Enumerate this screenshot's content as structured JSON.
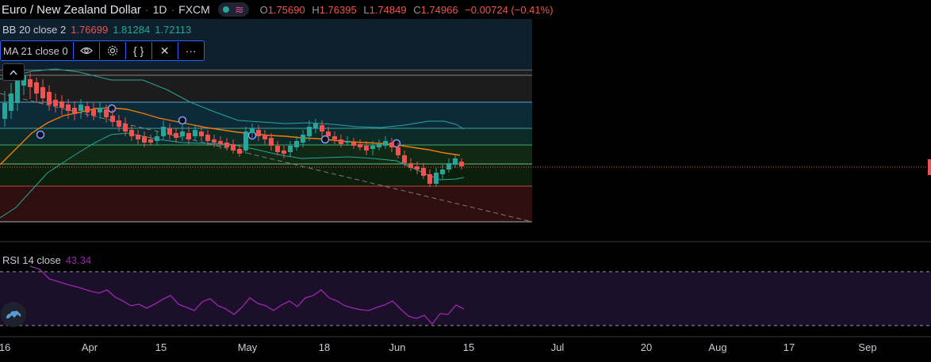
{
  "header": {
    "symbol": "Euro / New Zealand Dollar",
    "interval": "1D",
    "exchange": "FXCM",
    "ohlc": {
      "o": "1.75690",
      "h": "1.76395",
      "l": "1.74849",
      "c": "1.74966",
      "change": "−0.00724 (−0.41%)"
    },
    "icons": [
      "market-open-dot-icon",
      "wave-icon"
    ]
  },
  "indicators": {
    "bb": {
      "name": "BB 20 close 2",
      "values": [
        "1.76699",
        "1.81284",
        "1.72113"
      ],
      "colors": [
        "#ef5350",
        "#26a69a",
        "#26a69a"
      ]
    },
    "ma": {
      "name": "MA 21 close 0",
      "buttons": [
        "eye-icon",
        "gear-icon",
        "braces-icon",
        "close-icon",
        "more-icon"
      ]
    },
    "rsi": {
      "name": "RSI 14 close",
      "value": "43.34"
    }
  },
  "x_axis": {
    "ticks": [
      "16",
      "Apr",
      "15",
      "May",
      "18",
      "Jun",
      "15",
      "Jul",
      "20",
      "Aug",
      "17",
      "Sep"
    ]
  },
  "colors": {
    "up": "#26a69a",
    "down": "#ef5350",
    "ma": "#f57c00",
    "bb": "#26a69a",
    "rsi": "#9c27b0",
    "price_line": "#ef5350"
  },
  "chart_data": {
    "type": "candlestick",
    "series": [
      {
        "name": "MA 21 close 0"
      },
      {
        "name": "BB 20 close 2"
      },
      {
        "name": "RSI 14 close"
      }
    ]
  }
}
